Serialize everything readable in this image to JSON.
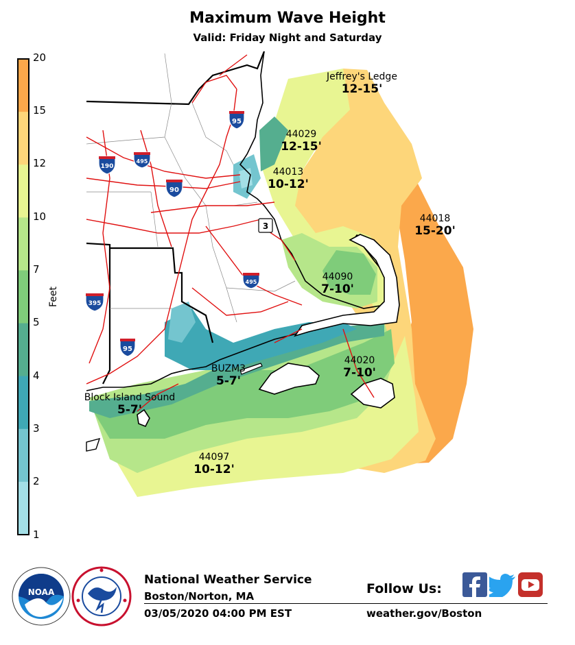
{
  "title": "Maximum Wave Height",
  "subtitle": "Valid: Friday Night and Saturday",
  "colorbar": {
    "label": "Feet",
    "ticks": [
      "20",
      "15",
      "12",
      "10",
      "7",
      "5",
      "4",
      "3",
      "2",
      "1"
    ],
    "colors": [
      "#fba84b",
      "#fdd67a",
      "#e8f592",
      "#b6e68a",
      "#7fcc7a",
      "#55ae8f",
      "#3fa8b5",
      "#74c5cf",
      "#a3dfe6"
    ]
  },
  "zones": [
    {
      "name": "Jeffrey's Ledge",
      "value": "12-15'"
    },
    {
      "name": "44029",
      "value": "12-15'"
    },
    {
      "name": "44013",
      "value": "10-12'"
    },
    {
      "name": "44018",
      "value": "15-20'"
    },
    {
      "name": "44090",
      "value": "7-10'"
    },
    {
      "name": "44020",
      "value": "7-10'"
    },
    {
      "name": "BUZM3",
      "value": "5-7'"
    },
    {
      "name": "Block Island Sound",
      "value": "5-7'"
    },
    {
      "name": "44097",
      "value": "10-12'"
    }
  ],
  "highways": {
    "i95_north": "95",
    "i190": "190",
    "i495_north": "495",
    "i90": "90",
    "rt3": "3",
    "i495_south": "495",
    "i395": "395",
    "i95_south": "95"
  },
  "footer": {
    "org": "National Weather Service",
    "office": "Boston/Norton, MA",
    "timestamp": "03/05/2020 04:00 PM EST",
    "follow": "Follow Us:",
    "url": "weather.gov/Boston",
    "noaa": "NOAA"
  },
  "icons": [
    "noaa-logo-icon",
    "nws-logo-icon",
    "facebook-icon",
    "twitter-icon",
    "youtube-icon"
  ]
}
